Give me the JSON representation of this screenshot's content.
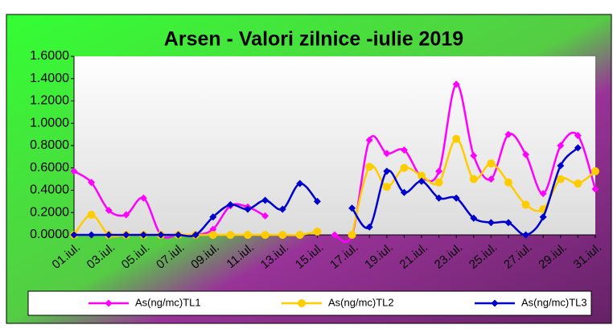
{
  "chart_data": {
    "type": "line",
    "title": "Arsen - Valori zilnice -iulie 2019",
    "categories": [
      "01.iul.",
      null,
      "03.iul.",
      null,
      "05.iul.",
      null,
      "07.iul.",
      null,
      "09.iul.",
      null,
      "11.iul.",
      null,
      "13.iul.",
      null,
      "15.iul.",
      null,
      "17.iul.",
      null,
      "19.iul.",
      null,
      "21.iul.",
      null,
      "23.iul.",
      null,
      "25.iul.",
      null,
      "27.iul.",
      null,
      "29.iul.",
      null,
      "31.iul."
    ],
    "series": [
      {
        "name": "As(ng/mc)TL1",
        "color": "#ff00ff",
        "values": [
          0.57,
          0.47,
          0.22,
          0.18,
          0.33,
          0,
          0,
          0,
          0.05,
          0.26,
          0.25,
          0.17,
          null,
          null,
          null,
          0,
          0,
          0.85,
          0.73,
          0.76,
          0.52,
          0.57,
          1.35,
          0.71,
          0.5,
          0.9,
          0.72,
          0.37,
          0.8,
          0.89,
          0.41
        ]
      },
      {
        "name": "As(ng/mc)TL2",
        "color": "#ffcc00",
        "values": [
          0,
          0.18,
          0,
          0,
          0,
          0,
          0,
          0,
          0,
          0,
          0,
          0,
          0,
          0,
          0.03,
          null,
          0,
          0.61,
          0.43,
          0.6,
          0.53,
          0.47,
          0.86,
          0.5,
          0.64,
          0.47,
          0.27,
          0.23,
          0.5,
          0.46,
          0.57
        ]
      },
      {
        "name": "As(ng/mc)TL3",
        "color": "#0000cc",
        "values": [
          0,
          0,
          0,
          0,
          0,
          0,
          0,
          0,
          0.16,
          0.27,
          0.23,
          0.31,
          0.23,
          0.46,
          0.3,
          null,
          0.24,
          0.07,
          0.57,
          0.38,
          0.48,
          0.33,
          0.33,
          0.15,
          0.11,
          0.11,
          0,
          0.16,
          0.62,
          0.78,
          null
        ]
      }
    ],
    "ylim": [
      0,
      1.6
    ],
    "yticks": [
      {
        "value": 0,
        "label": "0.0000"
      },
      {
        "value": 0.2,
        "label": "0.2000"
      },
      {
        "value": 0.4,
        "label": "0.4000"
      },
      {
        "value": 0.6,
        "label": "0.6000"
      },
      {
        "value": 0.8,
        "label": "0.8000"
      },
      {
        "value": 1.0,
        "label": "1.0000"
      },
      {
        "value": 1.2,
        "label": "1.2000"
      },
      {
        "value": 1.4,
        "label": "1.4000"
      },
      {
        "value": 1.6,
        "label": "1.6000"
      }
    ],
    "legend": "bottom"
  }
}
